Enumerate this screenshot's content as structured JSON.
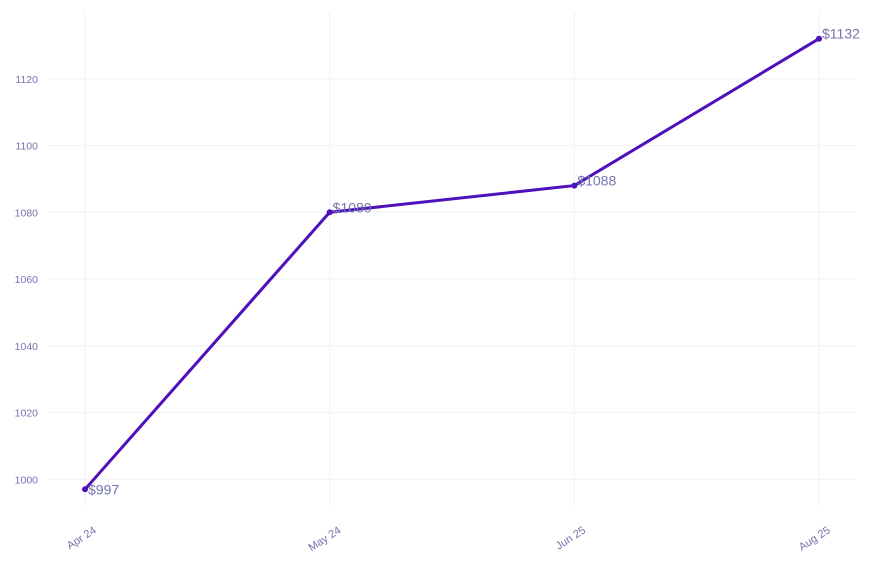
{
  "chart_data": {
    "type": "line",
    "title": "",
    "xlabel": "",
    "ylabel": "",
    "categories": [
      "Apr 24",
      "May 24",
      "Jun 25",
      "Aug 25"
    ],
    "series": [
      {
        "name": "price",
        "values": [
          997,
          1080,
          1088,
          1132
        ],
        "point_labels": [
          "$997",
          "$1080",
          "$1088",
          "$1132"
        ]
      }
    ],
    "y_ticks": [
      1000,
      1020,
      1040,
      1060,
      1080,
      1100,
      1120
    ],
    "ylim": [
      992,
      1140
    ],
    "grid": "on",
    "legend": "none",
    "colors": {
      "line": "#4e10ba",
      "marker": "#4e10ba",
      "tick_label": "#7373af",
      "point_label": "#7373af",
      "gridline": "#f2f2f9",
      "background": "#ffffff"
    }
  }
}
